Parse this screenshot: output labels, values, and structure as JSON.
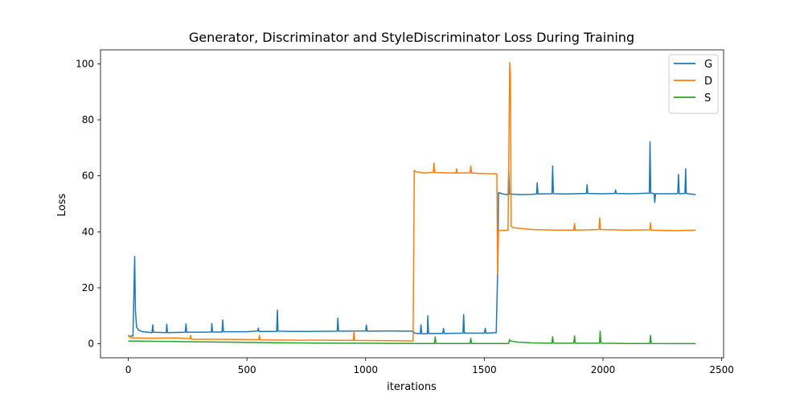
{
  "chart_data": {
    "type": "line",
    "title": "Generator, Discriminator and StyleDiscriminator Loss During Training",
    "xlabel": "iterations",
    "ylabel": "Loss",
    "xlim": [
      -117,
      2508
    ],
    "ylim": [
      -5,
      105
    ],
    "xticks": [
      0,
      500,
      1000,
      1500,
      2000,
      2500
    ],
    "yticks": [
      0,
      20,
      40,
      60,
      80,
      100
    ],
    "grid": false,
    "legend_position": "top-right",
    "series": [
      {
        "name": "G",
        "color": "#1f77b4",
        "points": [
          [
            0,
            2.6
          ],
          [
            20,
            2.8
          ],
          [
            27,
            31.2
          ],
          [
            30,
            12.0
          ],
          [
            35,
            6.0
          ],
          [
            45,
            4.8
          ],
          [
            60,
            4.3
          ],
          [
            100,
            4.0
          ],
          [
            103,
            6.8
          ],
          [
            106,
            4.1
          ],
          [
            160,
            4.0
          ],
          [
            162,
            7.0
          ],
          [
            165,
            4.0
          ],
          [
            240,
            4.1
          ],
          [
            243,
            7.1
          ],
          [
            246,
            4.1
          ],
          [
            350,
            4.2
          ],
          [
            352,
            7.2
          ],
          [
            355,
            4.2
          ],
          [
            395,
            4.2
          ],
          [
            398,
            8.5
          ],
          [
            401,
            4.3
          ],
          [
            500,
            4.3
          ],
          [
            545,
            4.6
          ],
          [
            548,
            5.6
          ],
          [
            551,
            4.4
          ],
          [
            625,
            4.4
          ],
          [
            628,
            12.0
          ],
          [
            631,
            4.5
          ],
          [
            700,
            4.4
          ],
          [
            880,
            4.5
          ],
          [
            883,
            9.2
          ],
          [
            886,
            4.5
          ],
          [
            1000,
            4.6
          ],
          [
            1003,
            6.7
          ],
          [
            1006,
            4.5
          ],
          [
            1100,
            4.6
          ],
          [
            1200,
            4.5
          ],
          [
            1206,
            3.8
          ],
          [
            1230,
            3.6
          ],
          [
            1233,
            6.8
          ],
          [
            1236,
            3.6
          ],
          [
            1260,
            3.6
          ],
          [
            1262,
            10.0
          ],
          [
            1265,
            3.7
          ],
          [
            1325,
            3.7
          ],
          [
            1328,
            5.5
          ],
          [
            1331,
            3.7
          ],
          [
            1410,
            3.8
          ],
          [
            1413,
            10.4
          ],
          [
            1416,
            3.8
          ],
          [
            1500,
            3.8
          ],
          [
            1504,
            5.5
          ],
          [
            1507,
            3.8
          ],
          [
            1550,
            4.0
          ],
          [
            1556,
            25.0
          ],
          [
            1560,
            54.0
          ],
          [
            1580,
            53.5
          ],
          [
            1600,
            53.2
          ],
          [
            1603,
            62.0
          ],
          [
            1606,
            53.5
          ],
          [
            1650,
            53.3
          ],
          [
            1700,
            53.4
          ],
          [
            1720,
            53.5
          ],
          [
            1723,
            57.5
          ],
          [
            1726,
            53.5
          ],
          [
            1785,
            53.6
          ],
          [
            1788,
            63.5
          ],
          [
            1791,
            53.6
          ],
          [
            1850,
            53.5
          ],
          [
            1930,
            53.7
          ],
          [
            1933,
            56.8
          ],
          [
            1936,
            53.7
          ],
          [
            2000,
            53.6
          ],
          [
            2050,
            53.7
          ],
          [
            2053,
            55.0
          ],
          [
            2056,
            53.7
          ],
          [
            2120,
            53.6
          ],
          [
            2195,
            53.8
          ],
          [
            2198,
            72.2
          ],
          [
            2201,
            53.8
          ],
          [
            2215,
            53.7
          ],
          [
            2218,
            50.5
          ],
          [
            2221,
            53.6
          ],
          [
            2300,
            53.6
          ],
          [
            2315,
            53.7
          ],
          [
            2318,
            60.5
          ],
          [
            2321,
            53.6
          ],
          [
            2345,
            53.7
          ],
          [
            2348,
            62.5
          ],
          [
            2351,
            53.7
          ],
          [
            2390,
            53.3
          ]
        ]
      },
      {
        "name": "D",
        "color": "#ff7f0e",
        "points": [
          [
            0,
            3.2
          ],
          [
            10,
            2.1
          ],
          [
            100,
            2.0
          ],
          [
            200,
            2.1
          ],
          [
            260,
            1.8
          ],
          [
            263,
            3.0
          ],
          [
            266,
            1.6
          ],
          [
            400,
            1.6
          ],
          [
            500,
            1.5
          ],
          [
            550,
            1.5
          ],
          [
            553,
            3.0
          ],
          [
            556,
            1.4
          ],
          [
            700,
            1.3
          ],
          [
            800,
            1.3
          ],
          [
            948,
            1.2
          ],
          [
            951,
            4.5
          ],
          [
            954,
            1.2
          ],
          [
            1100,
            1.1
          ],
          [
            1200,
            1.0
          ],
          [
            1205,
            62.0
          ],
          [
            1210,
            61.5
          ],
          [
            1250,
            61.0
          ],
          [
            1285,
            61.3
          ],
          [
            1288,
            64.5
          ],
          [
            1291,
            61.2
          ],
          [
            1380,
            61.0
          ],
          [
            1383,
            62.5
          ],
          [
            1386,
            61.0
          ],
          [
            1440,
            61.1
          ],
          [
            1443,
            63.5
          ],
          [
            1446,
            61.0
          ],
          [
            1500,
            60.8
          ],
          [
            1553,
            60.7
          ],
          [
            1556,
            25.0
          ],
          [
            1560,
            40.5
          ],
          [
            1600,
            40.6
          ],
          [
            1607,
            100.5
          ],
          [
            1610,
            96.0
          ],
          [
            1613,
            42.0
          ],
          [
            1620,
            41.5
          ],
          [
            1700,
            40.8
          ],
          [
            1800,
            40.6
          ],
          [
            1877,
            40.6
          ],
          [
            1880,
            43.0
          ],
          [
            1883,
            40.6
          ],
          [
            1983,
            40.8
          ],
          [
            1986,
            45.0
          ],
          [
            1989,
            40.8
          ],
          [
            2100,
            40.6
          ],
          [
            2197,
            40.7
          ],
          [
            2200,
            43.2
          ],
          [
            2203,
            40.6
          ],
          [
            2300,
            40.4
          ],
          [
            2390,
            40.6
          ]
        ]
      },
      {
        "name": "S",
        "color": "#2ca02c",
        "points": [
          [
            0,
            1.0
          ],
          [
            100,
            0.9
          ],
          [
            200,
            0.8
          ],
          [
            300,
            0.7
          ],
          [
            400,
            0.6
          ],
          [
            500,
            0.5
          ],
          [
            600,
            0.4
          ],
          [
            700,
            0.3
          ],
          [
            800,
            0.25
          ],
          [
            900,
            0.2
          ],
          [
            1000,
            0.2
          ],
          [
            1100,
            0.15
          ],
          [
            1200,
            0.1
          ],
          [
            1290,
            0.1
          ],
          [
            1293,
            2.5
          ],
          [
            1296,
            0.1
          ],
          [
            1440,
            0.1
          ],
          [
            1443,
            2.0
          ],
          [
            1446,
            0.1
          ],
          [
            1500,
            0.1
          ],
          [
            1603,
            0.1
          ],
          [
            1606,
            1.5
          ],
          [
            1610,
            1.0
          ],
          [
            1640,
            0.6
          ],
          [
            1700,
            0.3
          ],
          [
            1785,
            0.2
          ],
          [
            1788,
            2.5
          ],
          [
            1791,
            0.2
          ],
          [
            1877,
            0.2
          ],
          [
            1880,
            2.8
          ],
          [
            1883,
            0.2
          ],
          [
            1985,
            0.2
          ],
          [
            1988,
            4.5
          ],
          [
            1991,
            0.2
          ],
          [
            2100,
            0.1
          ],
          [
            2197,
            0.1
          ],
          [
            2200,
            3.0
          ],
          [
            2203,
            0.1
          ],
          [
            2300,
            0.05
          ],
          [
            2390,
            0.05
          ]
        ]
      }
    ]
  }
}
